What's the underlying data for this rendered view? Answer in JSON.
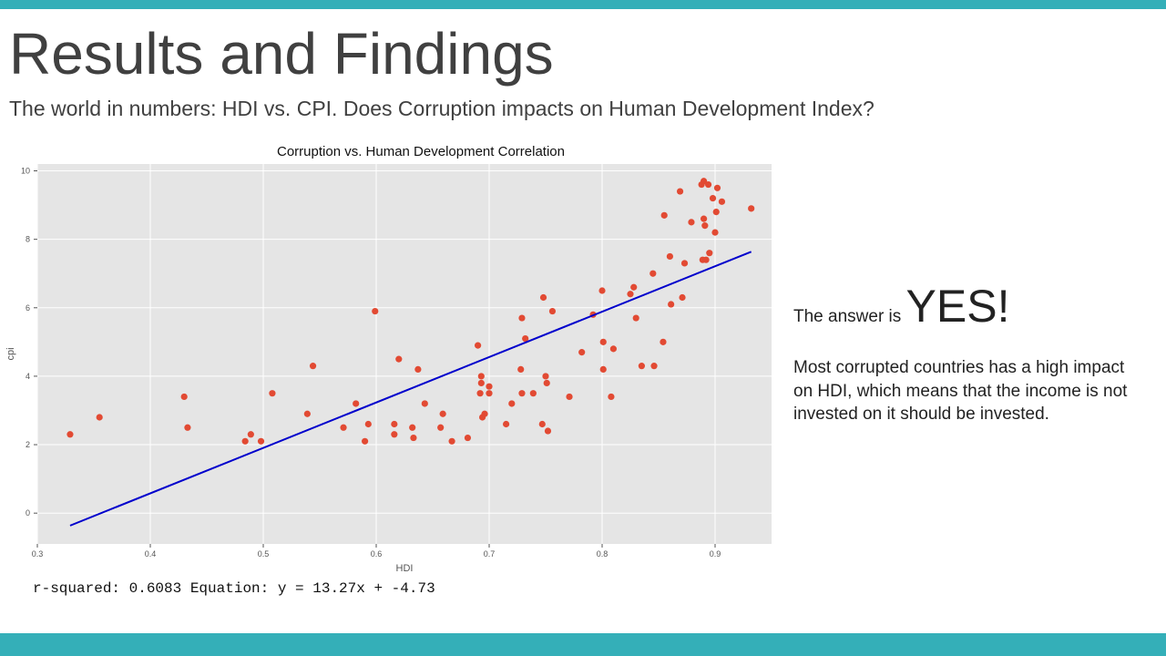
{
  "slide": {
    "title": "Results and Findings",
    "subtitle": "The world in numbers: HDI vs. CPI. Does Corruption impacts on Human Development Index?",
    "stats_text": "r-squared: 0.6083 Equation: y = 13.27x + -4.73",
    "answer_prefix": "The answer is ",
    "answer_value": "YES!",
    "explanation": "Most corrupted countries has a high impact on HDI, which means that the income is not invested on it should be invested.",
    "colors": {
      "accent_bar": "#34afb8",
      "points": "#e24a33",
      "regression_line": "#0000cc",
      "plot_background": "#e5e5e5"
    }
  },
  "chart_data": {
    "type": "scatter",
    "title": "Corruption vs. Human Development Correlation",
    "xlabel": "HDI",
    "ylabel": "cpi",
    "xlim": [
      0.3,
      0.95
    ],
    "ylim": [
      -0.9,
      10.2
    ],
    "xticks": [
      0.3,
      0.4,
      0.5,
      0.6,
      0.7,
      0.8,
      0.9
    ],
    "yticks": [
      0,
      2,
      4,
      6,
      8,
      10
    ],
    "grid": true,
    "regression": {
      "slope": 13.27,
      "intercept": -4.73,
      "r_squared": 0.6083,
      "x_range": [
        0.329,
        0.932
      ]
    },
    "points": [
      [
        0.329,
        2.3
      ],
      [
        0.355,
        2.8
      ],
      [
        0.43,
        3.4
      ],
      [
        0.433,
        2.5
      ],
      [
        0.484,
        2.1
      ],
      [
        0.489,
        2.3
      ],
      [
        0.498,
        2.1
      ],
      [
        0.508,
        3.5
      ],
      [
        0.539,
        2.9
      ],
      [
        0.544,
        4.3
      ],
      [
        0.571,
        2.5
      ],
      [
        0.582,
        3.2
      ],
      [
        0.59,
        2.1
      ],
      [
        0.593,
        2.6
      ],
      [
        0.599,
        5.9
      ],
      [
        0.616,
        2.6
      ],
      [
        0.616,
        2.3
      ],
      [
        0.62,
        4.5
      ],
      [
        0.632,
        2.5
      ],
      [
        0.633,
        2.2
      ],
      [
        0.637,
        4.2
      ],
      [
        0.643,
        3.2
      ],
      [
        0.657,
        2.5
      ],
      [
        0.659,
        2.9
      ],
      [
        0.667,
        2.1
      ],
      [
        0.681,
        2.2
      ],
      [
        0.69,
        4.9
      ],
      [
        0.692,
        3.5
      ],
      [
        0.693,
        4.0
      ],
      [
        0.693,
        3.8
      ],
      [
        0.694,
        2.8
      ],
      [
        0.696,
        2.9
      ],
      [
        0.7,
        3.7
      ],
      [
        0.7,
        3.5
      ],
      [
        0.715,
        2.6
      ],
      [
        0.72,
        3.2
      ],
      [
        0.728,
        4.2
      ],
      [
        0.729,
        5.7
      ],
      [
        0.729,
        3.5
      ],
      [
        0.732,
        5.1
      ],
      [
        0.739,
        3.5
      ],
      [
        0.747,
        2.6
      ],
      [
        0.748,
        6.3
      ],
      [
        0.75,
        4.0
      ],
      [
        0.751,
        3.8
      ],
      [
        0.752,
        2.4
      ],
      [
        0.756,
        5.9
      ],
      [
        0.771,
        3.4
      ],
      [
        0.782,
        4.7
      ],
      [
        0.792,
        5.8
      ],
      [
        0.8,
        6.5
      ],
      [
        0.801,
        5.0
      ],
      [
        0.801,
        4.2
      ],
      [
        0.808,
        3.4
      ],
      [
        0.81,
        4.8
      ],
      [
        0.825,
        6.4
      ],
      [
        0.828,
        6.6
      ],
      [
        0.83,
        5.7
      ],
      [
        0.835,
        4.3
      ],
      [
        0.845,
        7.0
      ],
      [
        0.846,
        4.3
      ],
      [
        0.854,
        5.0
      ],
      [
        0.855,
        8.7
      ],
      [
        0.86,
        7.5
      ],
      [
        0.861,
        6.1
      ],
      [
        0.869,
        9.4
      ],
      [
        0.871,
        6.3
      ],
      [
        0.873,
        7.3
      ],
      [
        0.879,
        8.5
      ],
      [
        0.888,
        9.6
      ],
      [
        0.889,
        7.4
      ],
      [
        0.89,
        8.6
      ],
      [
        0.89,
        9.7
      ],
      [
        0.891,
        8.4
      ],
      [
        0.892,
        7.4
      ],
      [
        0.894,
        9.6
      ],
      [
        0.895,
        7.6
      ],
      [
        0.898,
        9.2
      ],
      [
        0.9,
        8.2
      ],
      [
        0.901,
        8.8
      ],
      [
        0.902,
        9.5
      ],
      [
        0.906,
        9.1
      ],
      [
        0.932,
        8.9
      ]
    ]
  }
}
